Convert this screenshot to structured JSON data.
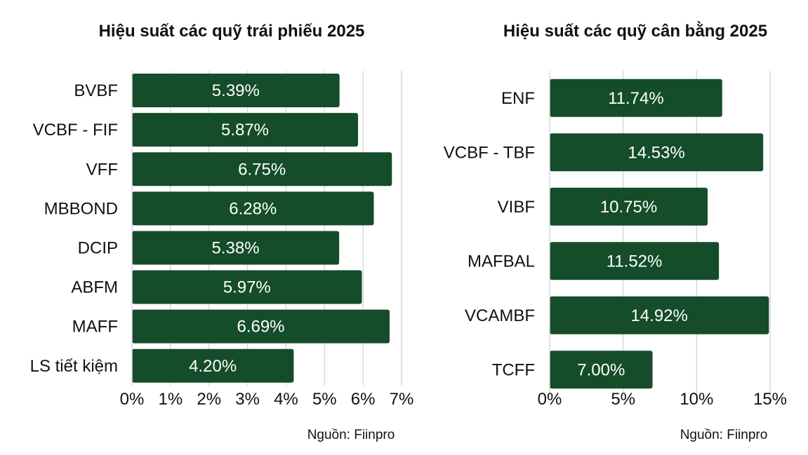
{
  "colors": {
    "bar": "#154c2a",
    "grid": "#d9d9d9"
  },
  "chart_data": [
    {
      "type": "bar",
      "orientation": "horizontal",
      "title": "Hiệu suất các quỹ trái phiếu 2025",
      "categories": [
        "BVBF",
        "VCBF - FIF",
        "VFF",
        "MBBOND",
        "DCIP",
        "ABFM",
        "MAFF",
        "LS tiết kiệm"
      ],
      "values": [
        5.39,
        5.87,
        6.75,
        6.28,
        5.38,
        5.97,
        6.69,
        4.2
      ],
      "value_labels": [
        "5.39%",
        "5.87%",
        "6.75%",
        "6.28%",
        "5.38%",
        "5.97%",
        "6.69%",
        "4.20%"
      ],
      "xlim": [
        0,
        7
      ],
      "ticks": [
        0,
        1,
        2,
        3,
        4,
        5,
        6,
        7
      ],
      "tick_labels": [
        "0%",
        "1%",
        "2%",
        "3%",
        "4%",
        "5%",
        "6%",
        "7%"
      ],
      "grid": true,
      "source": "Nguồn: Fiinpro"
    },
    {
      "type": "bar",
      "orientation": "horizontal",
      "title": "Hiệu suất các quỹ cân bằng 2025",
      "categories": [
        "ENF",
        "VCBF - TBF",
        "VIBF",
        "MAFBAL",
        "VCAMBF",
        "TCFF"
      ],
      "values": [
        11.74,
        14.53,
        10.75,
        11.52,
        14.92,
        7.0
      ],
      "value_labels": [
        "11.74%",
        "14.53%",
        "10.75%",
        "11.52%",
        "14.92%",
        "7.00%"
      ],
      "xlim": [
        0,
        15
      ],
      "ticks": [
        0,
        5,
        10,
        15
      ],
      "tick_labels": [
        "0%",
        "5%",
        "10%",
        "15%"
      ],
      "grid": true,
      "source": "Nguồn: Fiinpro"
    }
  ]
}
